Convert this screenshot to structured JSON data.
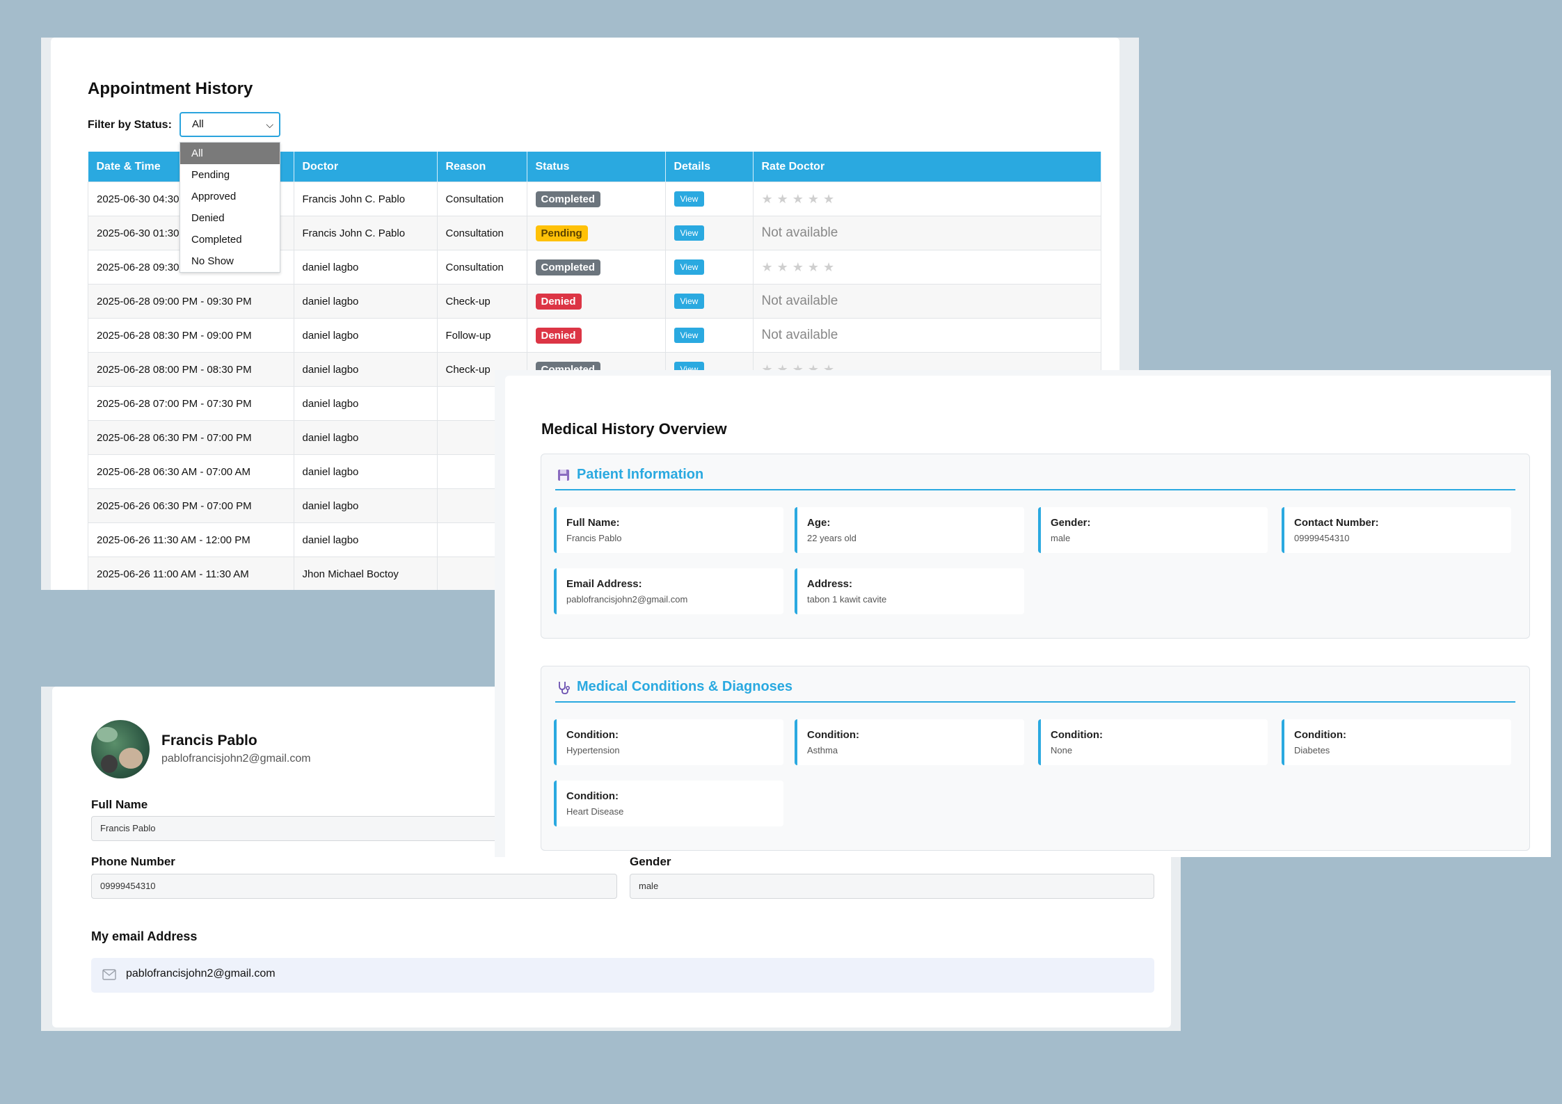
{
  "appointments": {
    "title": "Appointment History",
    "filter": {
      "label": "Filter by Status:",
      "selected": "All",
      "options": [
        "All",
        "Pending",
        "Approved",
        "Denied",
        "Completed",
        "No Show"
      ]
    },
    "columns": [
      "Date & Time",
      "Doctor",
      "Reason",
      "Status",
      "Details",
      "Rate Doctor"
    ],
    "view_label": "View",
    "not_available": "Not available",
    "stars": "★★★★★",
    "rows": [
      {
        "datetime": "2025-06-30 04:30",
        "doctor": "Francis John C. Pablo",
        "reason": "Consultation",
        "status": "Completed",
        "rate": "stars"
      },
      {
        "datetime": "2025-06-30 01:30",
        "doctor": "Francis John C. Pablo",
        "reason": "Consultation",
        "status": "Pending",
        "rate": "na"
      },
      {
        "datetime": "2025-06-28 09:30",
        "doctor": "daniel lagbo",
        "reason": "Consultation",
        "status": "Completed",
        "rate": "stars"
      },
      {
        "datetime": "2025-06-28 09:00 PM - 09:30 PM",
        "doctor": "daniel lagbo",
        "reason": "Check-up",
        "status": "Denied",
        "rate": "na"
      },
      {
        "datetime": "2025-06-28 08:30 PM - 09:00 PM",
        "doctor": "daniel lagbo",
        "reason": "Follow-up",
        "status": "Denied",
        "rate": "na"
      },
      {
        "datetime": "2025-06-28 08:00 PM - 08:30 PM",
        "doctor": "daniel lagbo",
        "reason": "Check-up",
        "status": "Completed",
        "rate": "stars"
      },
      {
        "datetime": "2025-06-28 07:00 PM - 07:30 PM",
        "doctor": "daniel lagbo",
        "reason": "",
        "status": "",
        "rate": ""
      },
      {
        "datetime": "2025-06-28 06:30 PM - 07:00 PM",
        "doctor": "daniel lagbo",
        "reason": "",
        "status": "",
        "rate": ""
      },
      {
        "datetime": "2025-06-28 06:30 AM - 07:00 AM",
        "doctor": "daniel lagbo",
        "reason": "",
        "status": "",
        "rate": ""
      },
      {
        "datetime": "2025-06-26 06:30 PM - 07:00 PM",
        "doctor": "daniel lagbo",
        "reason": "",
        "status": "",
        "rate": ""
      },
      {
        "datetime": "2025-06-26 11:30 AM - 12:00 PM",
        "doctor": "daniel lagbo",
        "reason": "",
        "status": "",
        "rate": ""
      },
      {
        "datetime": "2025-06-26 11:00 AM - 11:30 AM",
        "doctor": "Jhon Michael Boctoy",
        "reason": "",
        "status": "",
        "rate": ""
      }
    ]
  },
  "profile": {
    "name": "Francis Pablo",
    "email": "pablofrancisjohn2@gmail.com",
    "full_name_label": "Full Name",
    "full_name_value": "Francis Pablo",
    "phone_label": "Phone Number",
    "phone_value": "09999454310",
    "gender_label": "Gender",
    "gender_value": "male",
    "email_section_title": "My email Address",
    "email_value": "pablofrancisjohn2@gmail.com"
  },
  "medical": {
    "title": "Medical History Overview",
    "patient_section": "Patient Information",
    "patient_fields": [
      {
        "label": "Full Name:",
        "value": "Francis Pablo"
      },
      {
        "label": "Age:",
        "value": "22 years old"
      },
      {
        "label": "Gender:",
        "value": "male"
      },
      {
        "label": "Contact Number:",
        "value": "09999454310"
      },
      {
        "label": "Email Address:",
        "value": "pablofrancisjohn2@gmail.com"
      },
      {
        "label": "Address:",
        "value": "tabon 1 kawit cavite"
      }
    ],
    "conditions_section": "Medical Conditions & Diagnoses",
    "conditions": [
      {
        "label": "Condition:",
        "value": "Hypertension"
      },
      {
        "label": "Condition:",
        "value": "Asthma"
      },
      {
        "label": "Condition:",
        "value": "None"
      },
      {
        "label": "Condition:",
        "value": "Diabetes"
      },
      {
        "label": "Condition:",
        "value": "Heart Disease"
      }
    ]
  },
  "colors": {
    "accent": "#2aa9e0",
    "completed": "#6c757d",
    "pending": "#ffc107",
    "denied": "#dc3545",
    "background": "#a4bccb"
  }
}
